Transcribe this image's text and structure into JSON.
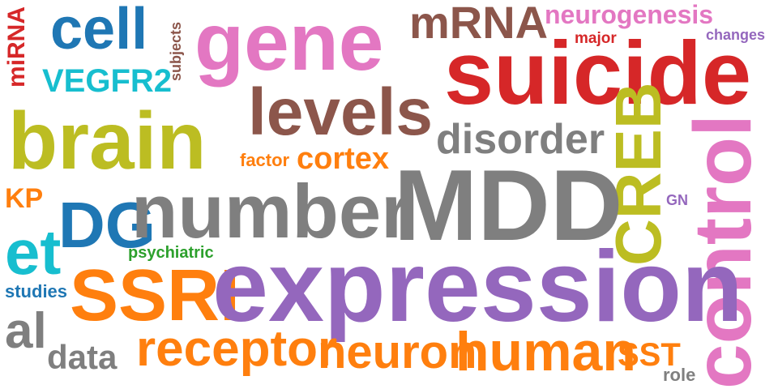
{
  "colors": {
    "red": "#d62728",
    "blue": "#1f77b4",
    "pink": "#e377c2",
    "brown": "#8c564b",
    "cyan": "#17becf",
    "gray": "#7f7f7f",
    "olive": "#bcbd22",
    "purple": "#9467bd",
    "orange": "#ff7f0e",
    "green": "#2ca02c"
  },
  "words": {
    "mirna": "miRNA",
    "cell": "cell",
    "subjects": "subjects",
    "gene": "gene",
    "mrna": "mRNA",
    "neurogenesis": "neurogenesis",
    "major": "major",
    "changes": "changes",
    "suicide": "suicide",
    "vegfr2": "VEGFR2",
    "levels": "levels",
    "brain": "brain",
    "disorder": "disorder",
    "factor": "factor",
    "cortex": "cortex",
    "creb": "CREB",
    "control": "control",
    "kp": "KP",
    "dg": "DG",
    "number": "number",
    "mdd": "MDD",
    "gn": "GN",
    "et": "et",
    "psychiatric": "psychiatric",
    "studies": "studies",
    "ssri": "SSRI",
    "expression": "expression",
    "al": "al",
    "data": "data",
    "receptor": "receptor",
    "neuron": "neuron",
    "human": "human",
    "sst": "SST",
    "role": "role"
  }
}
